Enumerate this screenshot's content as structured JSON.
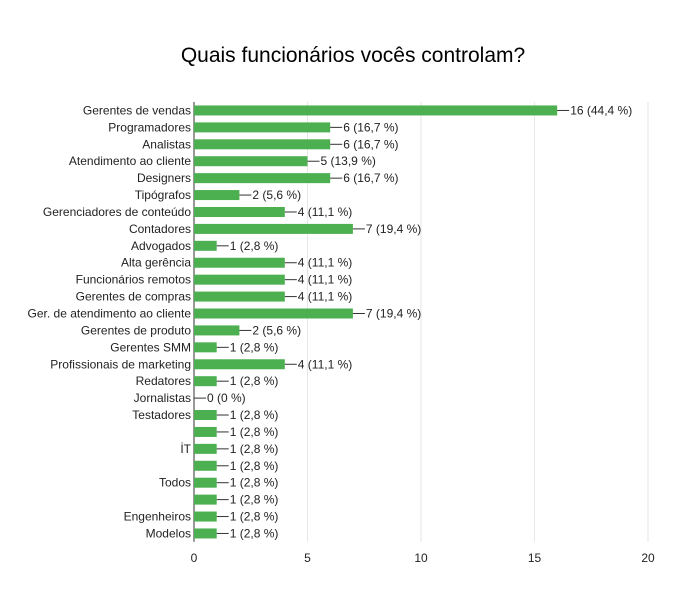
{
  "title": "Quais funcionários vocês controlam?",
  "colors": {
    "bar": "#4caf50",
    "grid": "#e6e6e6"
  },
  "chart_data": {
    "type": "bar",
    "orientation": "horizontal",
    "title": "Quais funcionários vocês controlam?",
    "xlabel": "",
    "ylabel": "",
    "xlim": [
      0,
      20
    ],
    "x_ticks": [
      "0",
      "5",
      "10",
      "15",
      "20"
    ],
    "grid": true,
    "categories": [
      "Gerentes de vendas",
      "Programadores",
      "Analistas",
      "Atendimento ao cliente",
      "Designers",
      "Tipógrafos",
      "Gerenciadores de conteúdo",
      "Contadores",
      "Advogados",
      "Alta gerência",
      "Funcionários remotos",
      "Gerentes de compras",
      "Ger. de atendimento ao cliente",
      "Gerentes de produto",
      "Gerentes SMM",
      "Profissionais de marketing",
      "Redatores",
      "Jornalistas",
      "Testadores",
      "",
      "İT",
      "",
      "Todos",
      "",
      "Engenheiros",
      "Modelos"
    ],
    "values": [
      16,
      6,
      6,
      5,
      6,
      2,
      4,
      7,
      1,
      4,
      4,
      4,
      7,
      2,
      1,
      4,
      1,
      0,
      1,
      1,
      1,
      1,
      1,
      1,
      1,
      1
    ],
    "value_labels": [
      "16 (44,4 %)",
      "6 (16,7 %)",
      "6 (16,7 %)",
      "5 (13,9 %)",
      "6 (16,7 %)",
      "2 (5,6 %)",
      "4 (11,1 %)",
      "7 (19,4 %)",
      "1 (2,8 %)",
      "4 (11,1 %)",
      "4 (11,1 %)",
      "4 (11,1 %)",
      "7 (19,4 %)",
      "2 (5,6 %)",
      "1 (2,8 %)",
      "4 (11,1 %)",
      "1 (2,8 %)",
      "0 (0 %)",
      "1 (2,8 %)",
      "1 (2,8 %)",
      "1 (2,8 %)",
      "1 (2,8 %)",
      "1 (2,8 %)",
      "1 (2,8 %)",
      "1 (2,8 %)",
      "1 (2,8 %)"
    ]
  }
}
